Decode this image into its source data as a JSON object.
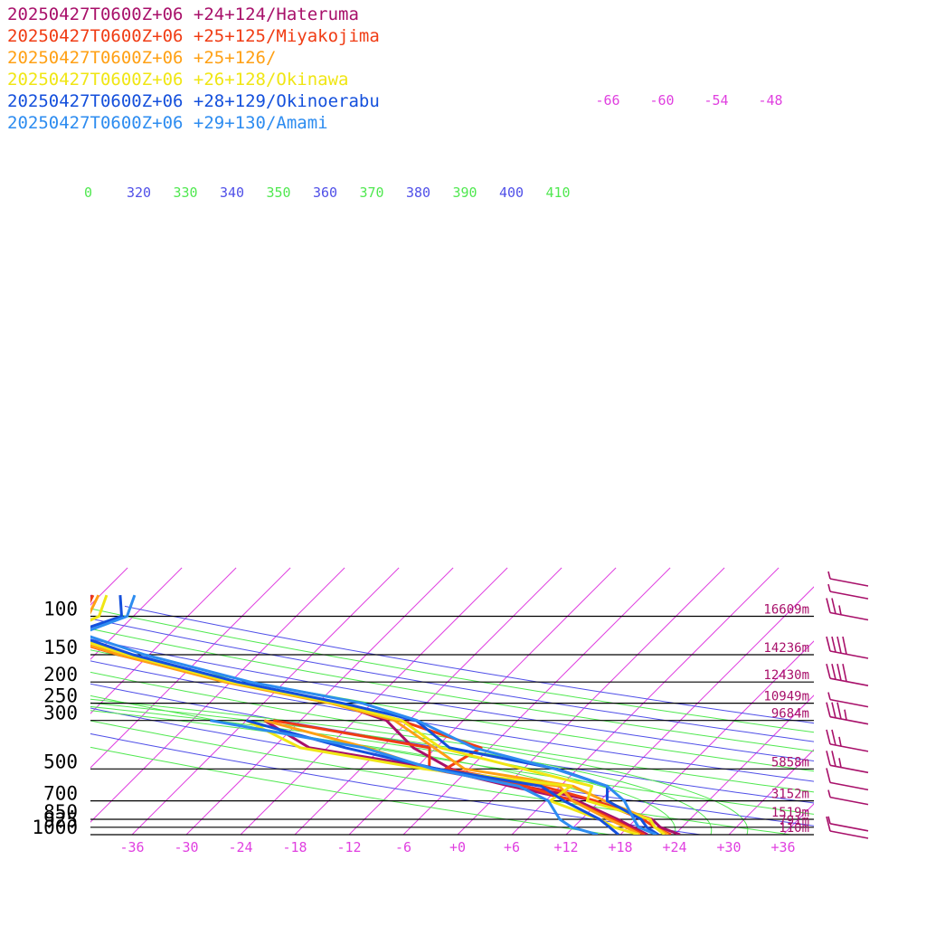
{
  "chart_data": {
    "type": "line",
    "title": "",
    "xlabel": "",
    "ylabel": "",
    "colors": {
      "isotherm": "#e040e0",
      "dry_adiabat_blue": "#5050e8",
      "dry_adiabat_green": "#50e850",
      "isobar": "#000000"
    },
    "series": [
      {
        "name": "20250427T0600Z+06 +24+124/Hateruma",
        "color": "#a8106a",
        "temperature_c": [
          [
            1000,
            24.6
          ],
          [
            925,
            21.6
          ],
          [
            850,
            19.8
          ],
          [
            700,
            11.4
          ],
          [
            600,
            2.0
          ],
          [
            500,
            -8.0
          ],
          [
            400,
            -14.5
          ],
          [
            300,
            -20.5
          ],
          [
            250,
            -28.0
          ],
          [
            200,
            -42.0
          ],
          [
            150,
            -57.0
          ],
          [
            120,
            -68.0
          ],
          [
            100,
            -66.0
          ],
          [
            80,
            -67.0
          ]
        ]
      },
      {
        "name": "20250427T0600Z+06 +25+125/Miyakojima",
        "color": "#f03c14",
        "temperature_c": [
          [
            1000,
            23.6
          ],
          [
            925,
            21.0
          ],
          [
            850,
            18.8
          ],
          [
            700,
            11.5
          ],
          [
            600,
            4.0
          ],
          [
            500,
            -8.6
          ],
          [
            400,
            -7.0
          ],
          [
            300,
            -19.0
          ],
          [
            250,
            -28.3
          ],
          [
            200,
            -42.3
          ],
          [
            150,
            -57.4
          ],
          [
            120,
            -67.6
          ],
          [
            100,
            -65.6
          ],
          [
            80,
            -66.8
          ]
        ]
      },
      {
        "name": "20250427T0600Z+06 +25+126/",
        "color": "#ffa014",
        "temperature_c": [
          [
            1000,
            23.3
          ],
          [
            925,
            21.0
          ],
          [
            850,
            19.5
          ],
          [
            700,
            12.5
          ],
          [
            600,
            7.4
          ],
          [
            500,
            -6.5
          ],
          [
            400,
            -12.2
          ],
          [
            300,
            -19.6
          ],
          [
            250,
            -28.6
          ],
          [
            200,
            -42.6
          ],
          [
            150,
            -57.3
          ],
          [
            120,
            -67.2
          ],
          [
            100,
            -65.0
          ],
          [
            80,
            -66.2
          ]
        ]
      },
      {
        "name": "20250427T0600Z+06 +26+128/Okinawa",
        "color": "#f0e614",
        "temperature_c": [
          [
            1000,
            22.9
          ],
          [
            925,
            21.0
          ],
          [
            850,
            19.6
          ],
          [
            700,
            10.6
          ],
          [
            600,
            9.5
          ],
          [
            500,
            0.0
          ],
          [
            400,
            -11.5
          ],
          [
            300,
            -18.8
          ],
          [
            250,
            -28.1
          ],
          [
            200,
            -42.0
          ],
          [
            150,
            -56.4
          ],
          [
            120,
            -66.1
          ],
          [
            100,
            -63.8
          ],
          [
            80,
            -65.3
          ]
        ]
      },
      {
        "name": "20250427T0600Z+06 +28+129/Okinoerabu",
        "color": "#1450dc",
        "temperature_c": [
          [
            1000,
            22.2
          ],
          [
            925,
            20.1
          ],
          [
            850,
            18.6
          ],
          [
            700,
            12.8
          ],
          [
            600,
            11.2
          ],
          [
            500,
            3.7
          ],
          [
            400,
            -10.5
          ],
          [
            300,
            -17.2
          ],
          [
            250,
            -27.3
          ],
          [
            200,
            -41.2
          ],
          [
            150,
            -55.8
          ],
          [
            120,
            -65.0
          ],
          [
            100,
            -61.3
          ],
          [
            80,
            -63.8
          ]
        ]
      },
      {
        "name": "20250427T0600Z+06 +29+130/Amami",
        "color": "#2d8cf0",
        "temperature_c": [
          [
            1000,
            22.0
          ],
          [
            925,
            19.2
          ],
          [
            850,
            17.8
          ],
          [
            700,
            14.7
          ],
          [
            600,
            11.2
          ],
          [
            500,
            3.5
          ],
          [
            400,
            -7.8
          ],
          [
            300,
            -17.1
          ],
          [
            250,
            -25.1
          ],
          [
            200,
            -39.8
          ],
          [
            150,
            -54.5
          ],
          [
            120,
            -63.9
          ],
          [
            100,
            -60.7
          ],
          [
            80,
            -62.2
          ]
        ]
      }
    ],
    "dewpoint_c": [
      {
        "series": "20250427T0600Z+06 +24+124/Hateruma",
        "points": [
          [
            1000,
            21.0
          ],
          [
            925,
            18.6
          ],
          [
            850,
            16.0
          ],
          [
            700,
            9.5
          ],
          [
            600,
            0.5
          ],
          [
            500,
            -9.4
          ],
          [
            400,
            -26.0
          ],
          [
            300,
            -34.0
          ]
        ]
      },
      {
        "series": "20250427T0600Z+06 +25+125/Miyakojima",
        "points": [
          [
            1000,
            20.7
          ],
          [
            925,
            18.0
          ],
          [
            850,
            15.5
          ],
          [
            700,
            9.0
          ],
          [
            600,
            2.2
          ],
          [
            500,
            -10.4
          ],
          [
            400,
            -12.7
          ],
          [
            300,
            -33.0
          ]
        ]
      },
      {
        "series": "20250427T0600Z+06 +25+126/",
        "points": [
          [
            1000,
            20.2
          ],
          [
            925,
            17.8
          ],
          [
            850,
            15.0
          ],
          [
            700,
            9.0
          ],
          [
            600,
            5.9
          ],
          [
            500,
            -10.3
          ],
          [
            400,
            -19.6
          ],
          [
            300,
            -34.0
          ]
        ]
      },
      {
        "series": "20250427T0600Z+06 +26+128/Okinawa",
        "points": [
          [
            1000,
            20.0
          ],
          [
            925,
            16.5
          ],
          [
            850,
            14.0
          ],
          [
            700,
            6.5
          ],
          [
            600,
            7.2
          ],
          [
            500,
            -11.0
          ],
          [
            400,
            -27.0
          ],
          [
            300,
            -36.0
          ]
        ]
      },
      {
        "series": "20250427T0600Z+06 +28+129/Okinoerabu",
        "points": [
          [
            1000,
            17.8
          ],
          [
            925,
            16.0
          ],
          [
            850,
            14.0
          ],
          [
            700,
            8.0
          ],
          [
            600,
            3.9
          ],
          [
            500,
            -9.5
          ],
          [
            400,
            -22.0
          ],
          [
            300,
            -36.0
          ]
        ]
      },
      {
        "series": "20250427T0600Z+06 +29+130/Amami",
        "points": [
          [
            1000,
            15.5
          ],
          [
            925,
            11.8
          ],
          [
            850,
            9.6
          ],
          [
            700,
            6.3
          ],
          [
            600,
            1.4
          ],
          [
            500,
            -10.0
          ],
          [
            400,
            -20.0
          ],
          [
            300,
            -40.0
          ]
        ]
      }
    ],
    "pressure_levels": [
      {
        "p": 100,
        "label": "100",
        "height": "16609m"
      },
      {
        "p": 150,
        "label": "150",
        "height": "14236m"
      },
      {
        "p": 200,
        "label": "200",
        "height": "12430m"
      },
      {
        "p": 250,
        "label": "250",
        "height": "10949m"
      },
      {
        "p": 300,
        "label": "300",
        "height": "9684m"
      },
      {
        "p": 500,
        "label": "500",
        "height": "5858m"
      },
      {
        "p": 700,
        "label": "700",
        "height": "3152m"
      },
      {
        "p": 850,
        "label": "850",
        "height": "1519m"
      },
      {
        "p": 925,
        "label": "925",
        "height": "791m"
      },
      {
        "p": 1000,
        "label": "1000",
        "height": "110m"
      }
    ],
    "x_ticks": [
      {
        "value": -36,
        "label": "-36"
      },
      {
        "value": -30,
        "label": "-30"
      },
      {
        "value": -24,
        "label": "-24"
      },
      {
        "value": -18,
        "label": "-18"
      },
      {
        "value": -12,
        "label": "-12"
      },
      {
        "value": -6,
        "label": "-6"
      },
      {
        "value": 0,
        "label": "+0"
      },
      {
        "value": 6,
        "label": "+6"
      },
      {
        "value": 12,
        "label": "+12"
      },
      {
        "value": 18,
        "label": "+18"
      },
      {
        "value": 24,
        "label": "+24"
      },
      {
        "value": 30,
        "label": "+30"
      },
      {
        "value": 36,
        "label": "+36"
      }
    ],
    "upper_isotherm_labels": [
      {
        "value": -66,
        "label": "-66"
      },
      {
        "value": -60,
        "label": "-60"
      },
      {
        "value": -54,
        "label": "-54"
      },
      {
        "value": -48,
        "label": "-48"
      }
    ],
    "theta_labels": [
      {
        "label": "0",
        "color": "green"
      },
      {
        "label": "320",
        "color": "blue"
      },
      {
        "label": "330",
        "color": "green"
      },
      {
        "label": "340",
        "color": "blue"
      },
      {
        "label": "350",
        "color": "green"
      },
      {
        "label": "360",
        "color": "blue"
      },
      {
        "label": "370",
        "color": "green"
      },
      {
        "label": "380",
        "color": "blue"
      },
      {
        "label": "390",
        "color": "green"
      },
      {
        "label": "400",
        "color": "blue"
      },
      {
        "label": "410",
        "color": "green"
      }
    ],
    "y_scale": "log-pressure",
    "ylim": [
      1000,
      80
    ],
    "xlim": [
      -40,
      40
    ],
    "wind_barbs": [
      {
        "p": 1000,
        "kt": 10
      },
      {
        "p": 925,
        "kt": 5
      },
      {
        "p": 700,
        "kt": 5
      },
      {
        "p": 600,
        "kt": 10
      },
      {
        "p": 500,
        "kt": 25
      },
      {
        "p": 400,
        "kt": 25
      },
      {
        "p": 300,
        "kt": 35
      },
      {
        "p": 250,
        "kt": 5
      },
      {
        "p": 200,
        "kt": 40
      },
      {
        "p": 150,
        "kt": 40
      },
      {
        "p": 100,
        "kt": 25
      },
      {
        "p": 80,
        "kt": 5
      },
      {
        "p": 70,
        "kt": 5
      }
    ],
    "legend": "top-left",
    "grid": true
  }
}
